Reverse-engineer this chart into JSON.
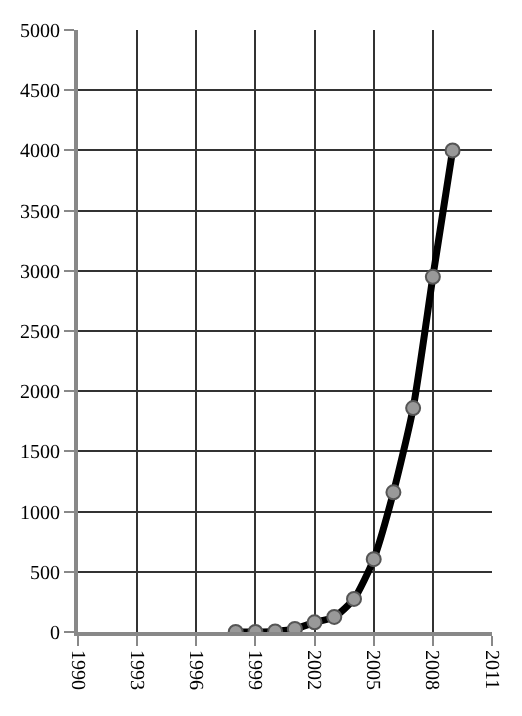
{
  "chart_data": {
    "type": "line",
    "x": [
      1998,
      1999,
      2000,
      2001,
      2002,
      2003,
      2004,
      2005,
      2006,
      2007,
      2008,
      2009
    ],
    "series": [
      {
        "color": "#000000",
        "values": [
          0,
          0,
          5,
          25,
          80,
          125,
          275,
          605,
          1160,
          1860,
          2950,
          4000
        ]
      }
    ],
    "xlim": [
      1990,
      2011
    ],
    "xticks": [
      1990,
      1993,
      1996,
      1999,
      2002,
      2005,
      2008,
      2011
    ],
    "ylim": [
      0,
      5000
    ],
    "yticks": [
      0,
      500,
      1000,
      1500,
      2000,
      2500,
      3000,
      3500,
      4000,
      4500,
      5000
    ],
    "grid": true,
    "marker": "circle",
    "line_style": "solid"
  }
}
